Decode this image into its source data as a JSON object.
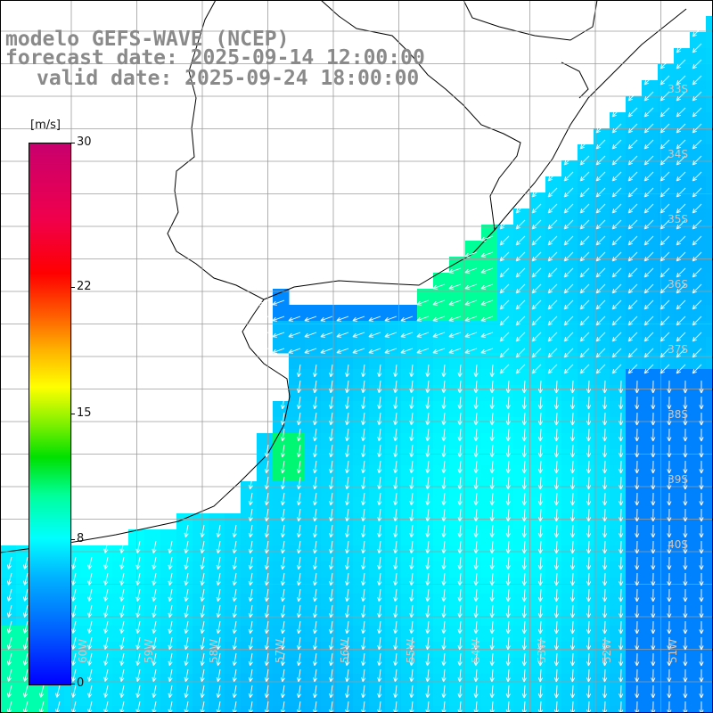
{
  "title": {
    "line1": "modelo GEFS-WAVE (NCEP)",
    "line2": "forecast date: 2025-09-14 12:00:00",
    "line3": "valid date: 2025-09-24 18:00:00"
  },
  "colorbar": {
    "unit": "[m/s]",
    "min": 0,
    "max": 30,
    "ticks": [
      {
        "label": "30",
        "value": 30
      },
      {
        "label": "22",
        "value": 22
      },
      {
        "label": "15",
        "value": 15
      },
      {
        "label": "8",
        "value": 8
      },
      {
        "label": "0",
        "value": 0
      }
    ]
  },
  "map": {
    "lat_labels": [
      "33S",
      "34S",
      "35S",
      "36S",
      "37S",
      "38S",
      "39S",
      "40S"
    ],
    "lon_labels": [
      "60W",
      "59W",
      "58W",
      "57W",
      "56W",
      "55W",
      "54W",
      "53W",
      "52W",
      "51W"
    ],
    "colors": {
      "land": "#ffffff",
      "coast": "#000000",
      "grid": "#9c9c9c",
      "vector": "#ffffff",
      "title": "#8a8a8a"
    }
  }
}
